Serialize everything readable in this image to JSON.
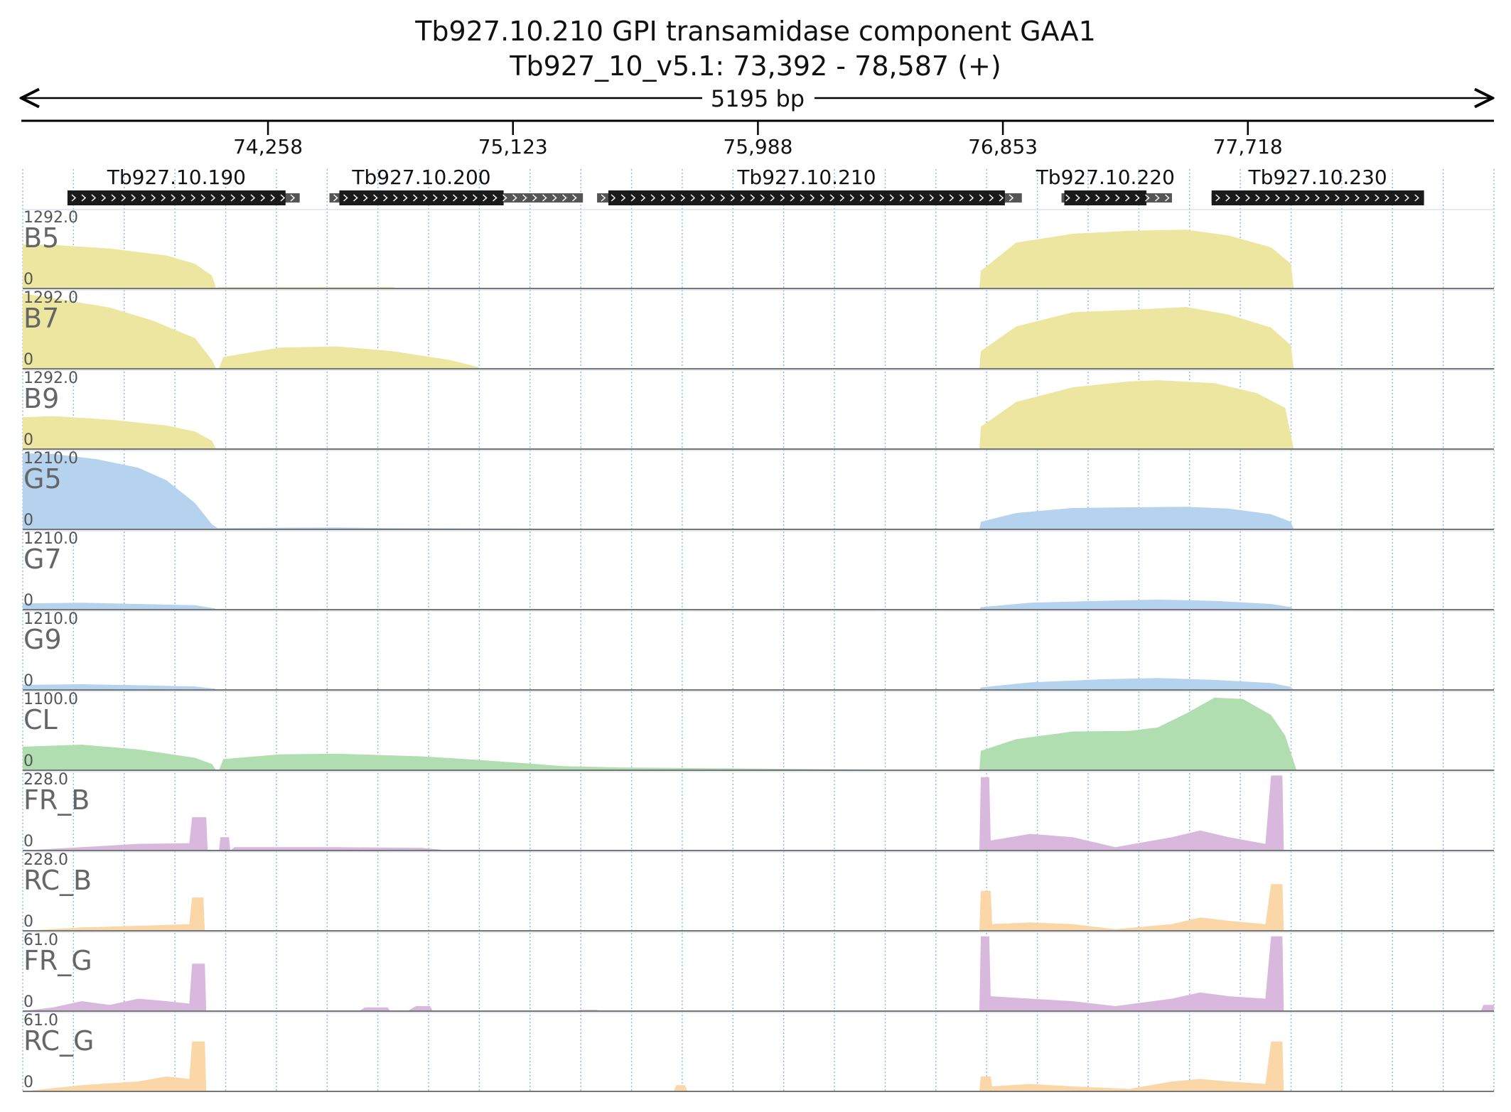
{
  "title_line1": "Tb927.10.210  GPI transamidase component GAA1",
  "title_line2": "Tb927_10_v5.1: 73,392 - 78,587 (+)",
  "span_label": "5195 bp",
  "chart_data": {
    "type": "area",
    "x_unit": "bp",
    "xlim": [
      73392,
      78587
    ],
    "x_ticks": [
      74258,
      75123,
      75988,
      76853,
      77718
    ],
    "x_tick_labels": [
      "74,258",
      "75,123",
      "75,988",
      "76,853",
      "77,718"
    ],
    "genes": [
      {
        "name": "Tb927.10.190",
        "cds": [
          73550,
          74320
        ],
        "utr": [
          73550,
          74370
        ]
      },
      {
        "name": "Tb927.10.200",
        "cds": [
          74510,
          75090
        ],
        "utr": [
          74475,
          75370
        ]
      },
      {
        "name": "Tb927.10.210",
        "cds": [
          75460,
          76860
        ],
        "utr": [
          75420,
          76920
        ]
      },
      {
        "name": "Tb927.10.220",
        "cds": [
          77070,
          77360
        ],
        "utr": [
          77060,
          77450
        ]
      },
      {
        "name": "Tb927.10.230",
        "cds": [
          77590,
          78340
        ],
        "utr": [
          77590,
          78340
        ]
      }
    ],
    "tracks": [
      {
        "name": "B5",
        "ymax_label": "1292.0",
        "ymin_label": "0",
        "ymax": 1292,
        "color": "#ede6a0",
        "points": [
          [
            73392,
            750
          ],
          [
            73500,
            740
          ],
          [
            73700,
            680
          ],
          [
            73900,
            560
          ],
          [
            74000,
            420
          ],
          [
            74060,
            220
          ],
          [
            74075,
            0
          ],
          [
            74080,
            25
          ],
          [
            74700,
            25
          ],
          [
            74710,
            0
          ],
          [
            76770,
            0
          ],
          [
            76775,
            300
          ],
          [
            76900,
            780
          ],
          [
            77100,
            930
          ],
          [
            77300,
            980
          ],
          [
            77500,
            1000
          ],
          [
            77650,
            900
          ],
          [
            77800,
            700
          ],
          [
            77870,
            420
          ],
          [
            77880,
            0
          ],
          [
            78587,
            0
          ]
        ]
      },
      {
        "name": "B7",
        "ymax_label": "1292.0",
        "ymin_label": "0",
        "ymax": 1292,
        "color": "#ede6a0",
        "points": [
          [
            73392,
            1280
          ],
          [
            73500,
            1200
          ],
          [
            73700,
            1040
          ],
          [
            73850,
            820
          ],
          [
            74000,
            520
          ],
          [
            74060,
            150
          ],
          [
            74075,
            0
          ],
          [
            74085,
            0
          ],
          [
            74100,
            200
          ],
          [
            74300,
            360
          ],
          [
            74500,
            380
          ],
          [
            74700,
            300
          ],
          [
            74900,
            150
          ],
          [
            75000,
            30
          ],
          [
            75010,
            0
          ],
          [
            76770,
            0
          ],
          [
            76775,
            300
          ],
          [
            76900,
            720
          ],
          [
            77100,
            960
          ],
          [
            77300,
            1000
          ],
          [
            77500,
            1050
          ],
          [
            77650,
            920
          ],
          [
            77800,
            700
          ],
          [
            77870,
            400
          ],
          [
            77880,
            0
          ],
          [
            78587,
            0
          ]
        ]
      },
      {
        "name": "B9",
        "ymax_label": "1292.0",
        "ymin_label": "0",
        "ymax": 1292,
        "color": "#ede6a0",
        "points": [
          [
            73392,
            540
          ],
          [
            73500,
            560
          ],
          [
            73700,
            500
          ],
          [
            73900,
            400
          ],
          [
            74000,
            300
          ],
          [
            74060,
            140
          ],
          [
            74075,
            0
          ],
          [
            76770,
            0
          ],
          [
            76775,
            380
          ],
          [
            76900,
            800
          ],
          [
            77100,
            1050
          ],
          [
            77300,
            1150
          ],
          [
            77400,
            1170
          ],
          [
            77600,
            1120
          ],
          [
            77750,
            950
          ],
          [
            77850,
            700
          ],
          [
            77880,
            0
          ],
          [
            78587,
            0
          ]
        ]
      },
      {
        "name": "G5",
        "ymax_label": "1210.0",
        "ymin_label": "0",
        "ymax": 1210,
        "color": "#b5d3ee",
        "points": [
          [
            73392,
            1210
          ],
          [
            73500,
            1200
          ],
          [
            73650,
            1120
          ],
          [
            73800,
            980
          ],
          [
            73900,
            780
          ],
          [
            74000,
            420
          ],
          [
            74060,
            80
          ],
          [
            74080,
            20
          ],
          [
            74500,
            30
          ],
          [
            74700,
            20
          ],
          [
            75300,
            10
          ],
          [
            75800,
            0
          ],
          [
            76770,
            0
          ],
          [
            76775,
            120
          ],
          [
            76900,
            260
          ],
          [
            77100,
            340
          ],
          [
            77300,
            350
          ],
          [
            77500,
            360
          ],
          [
            77650,
            330
          ],
          [
            77800,
            240
          ],
          [
            77870,
            120
          ],
          [
            77880,
            0
          ],
          [
            78587,
            0
          ]
        ]
      },
      {
        "name": "G7",
        "ymax_label": "1210.0",
        "ymin_label": "0",
        "ymax": 1210,
        "color": "#b5d3ee",
        "points": [
          [
            73392,
            100
          ],
          [
            73600,
            110
          ],
          [
            73800,
            90
          ],
          [
            74000,
            70
          ],
          [
            74070,
            20
          ],
          [
            74080,
            0
          ],
          [
            76770,
            0
          ],
          [
            76775,
            40
          ],
          [
            76950,
            110
          ],
          [
            77200,
            140
          ],
          [
            77400,
            160
          ],
          [
            77600,
            140
          ],
          [
            77800,
            90
          ],
          [
            77870,
            40
          ],
          [
            77880,
            0
          ],
          [
            78587,
            0
          ]
        ]
      },
      {
        "name": "G9",
        "ymax_label": "1210.0",
        "ymin_label": "0",
        "ymax": 1210,
        "color": "#b5d3ee",
        "points": [
          [
            73392,
            80
          ],
          [
            73600,
            90
          ],
          [
            73800,
            75
          ],
          [
            74000,
            55
          ],
          [
            74070,
            20
          ],
          [
            74080,
            0
          ],
          [
            76770,
            0
          ],
          [
            76775,
            40
          ],
          [
            76950,
            120
          ],
          [
            77200,
            170
          ],
          [
            77400,
            190
          ],
          [
            77600,
            160
          ],
          [
            77800,
            110
          ],
          [
            77870,
            50
          ],
          [
            77880,
            0
          ],
          [
            78587,
            0
          ]
        ]
      },
      {
        "name": "CL",
        "ymax_label": "1100.0",
        "ymin_label": "0",
        "ymax": 1100,
        "color": "#b0deb0",
        "points": [
          [
            73392,
            340
          ],
          [
            73600,
            370
          ],
          [
            73800,
            300
          ],
          [
            74000,
            180
          ],
          [
            74060,
            90
          ],
          [
            74075,
            0
          ],
          [
            74085,
            0
          ],
          [
            74100,
            160
          ],
          [
            74300,
            230
          ],
          [
            74500,
            240
          ],
          [
            74800,
            200
          ],
          [
            75000,
            150
          ],
          [
            75300,
            60
          ],
          [
            75500,
            40
          ],
          [
            75800,
            30
          ],
          [
            76100,
            20
          ],
          [
            76400,
            10
          ],
          [
            76770,
            0
          ],
          [
            76775,
            280
          ],
          [
            76900,
            450
          ],
          [
            77100,
            560
          ],
          [
            77300,
            570
          ],
          [
            77400,
            620
          ],
          [
            77500,
            820
          ],
          [
            77600,
            1050
          ],
          [
            77700,
            1030
          ],
          [
            77800,
            800
          ],
          [
            77850,
            500
          ],
          [
            77890,
            0
          ],
          [
            78587,
            0
          ]
        ]
      },
      {
        "name": "FR_B",
        "ymax_label": "228.0",
        "ymin_label": "0",
        "ymax": 228,
        "color": "#d8b9dd",
        "points": [
          [
            73392,
            0
          ],
          [
            73600,
            10
          ],
          [
            73800,
            20
          ],
          [
            73980,
            22
          ],
          [
            73990,
            100
          ],
          [
            74040,
            100
          ],
          [
            74045,
            0
          ],
          [
            74085,
            0
          ],
          [
            74090,
            40
          ],
          [
            74120,
            40
          ],
          [
            74125,
            0
          ],
          [
            74140,
            10
          ],
          [
            74500,
            10
          ],
          [
            74800,
            8
          ],
          [
            74900,
            0
          ],
          [
            76770,
            0
          ],
          [
            76775,
            220
          ],
          [
            76805,
            220
          ],
          [
            76810,
            30
          ],
          [
            76950,
            50
          ],
          [
            77100,
            40
          ],
          [
            77250,
            10
          ],
          [
            77450,
            40
          ],
          [
            77550,
            60
          ],
          [
            77650,
            40
          ],
          [
            77780,
            20
          ],
          [
            77800,
            225
          ],
          [
            77840,
            225
          ],
          [
            77845,
            0
          ],
          [
            78587,
            0
          ]
        ]
      },
      {
        "name": "RC_B",
        "ymax_label": "228.0",
        "ymin_label": "0",
        "ymax": 228,
        "color": "#fbd6a6",
        "points": [
          [
            73392,
            0
          ],
          [
            73600,
            10
          ],
          [
            73800,
            15
          ],
          [
            73980,
            20
          ],
          [
            73990,
            100
          ],
          [
            74030,
            100
          ],
          [
            74035,
            0
          ],
          [
            76770,
            0
          ],
          [
            76775,
            120
          ],
          [
            76810,
            120
          ],
          [
            76815,
            20
          ],
          [
            76950,
            25
          ],
          [
            77100,
            20
          ],
          [
            77250,
            5
          ],
          [
            77450,
            20
          ],
          [
            77550,
            40
          ],
          [
            77650,
            30
          ],
          [
            77780,
            20
          ],
          [
            77800,
            140
          ],
          [
            77840,
            140
          ],
          [
            77845,
            0
          ],
          [
            78587,
            0
          ]
        ]
      },
      {
        "name": "FR_G",
        "ymax_label": "61.0",
        "ymin_label": "0",
        "ymax": 61,
        "color": "#d8b9dd",
        "points": [
          [
            73392,
            0
          ],
          [
            73500,
            3
          ],
          [
            73600,
            8
          ],
          [
            73700,
            5
          ],
          [
            73800,
            10
          ],
          [
            73900,
            8
          ],
          [
            73980,
            6
          ],
          [
            73990,
            38
          ],
          [
            74035,
            38
          ],
          [
            74040,
            0
          ],
          [
            74580,
            0
          ],
          [
            74600,
            3
          ],
          [
            74680,
            3
          ],
          [
            74690,
            0
          ],
          [
            74750,
            0
          ],
          [
            74780,
            4
          ],
          [
            74830,
            4
          ],
          [
            74840,
            0
          ],
          [
            75350,
            0
          ],
          [
            75360,
            1
          ],
          [
            75420,
            1
          ],
          [
            75430,
            0
          ],
          [
            76770,
            0
          ],
          [
            76775,
            60
          ],
          [
            76805,
            60
          ],
          [
            76810,
            12
          ],
          [
            76950,
            10
          ],
          [
            77100,
            8
          ],
          [
            77250,
            4
          ],
          [
            77450,
            10
          ],
          [
            77550,
            15
          ],
          [
            77650,
            12
          ],
          [
            77780,
            10
          ],
          [
            77800,
            60
          ],
          [
            77840,
            60
          ],
          [
            77845,
            0
          ],
          [
            78540,
            0
          ],
          [
            78550,
            5
          ],
          [
            78587,
            5
          ]
        ]
      },
      {
        "name": "RC_G",
        "ymax_label": "61.0",
        "ymin_label": "0",
        "ymax": 61,
        "color": "#fbd6a6",
        "points": [
          [
            73392,
            0
          ],
          [
            73600,
            5
          ],
          [
            73800,
            8
          ],
          [
            73900,
            12
          ],
          [
            73980,
            10
          ],
          [
            73990,
            40
          ],
          [
            74035,
            40
          ],
          [
            74040,
            0
          ],
          [
            75690,
            0
          ],
          [
            75700,
            5
          ],
          [
            75730,
            5
          ],
          [
            75740,
            0
          ],
          [
            76770,
            0
          ],
          [
            76775,
            12
          ],
          [
            76810,
            12
          ],
          [
            76815,
            4
          ],
          [
            76950,
            6
          ],
          [
            77100,
            4
          ],
          [
            77300,
            2
          ],
          [
            77450,
            8
          ],
          [
            77550,
            10
          ],
          [
            77650,
            8
          ],
          [
            77780,
            6
          ],
          [
            77800,
            40
          ],
          [
            77840,
            40
          ],
          [
            77845,
            0
          ],
          [
            78587,
            0
          ]
        ]
      }
    ]
  }
}
